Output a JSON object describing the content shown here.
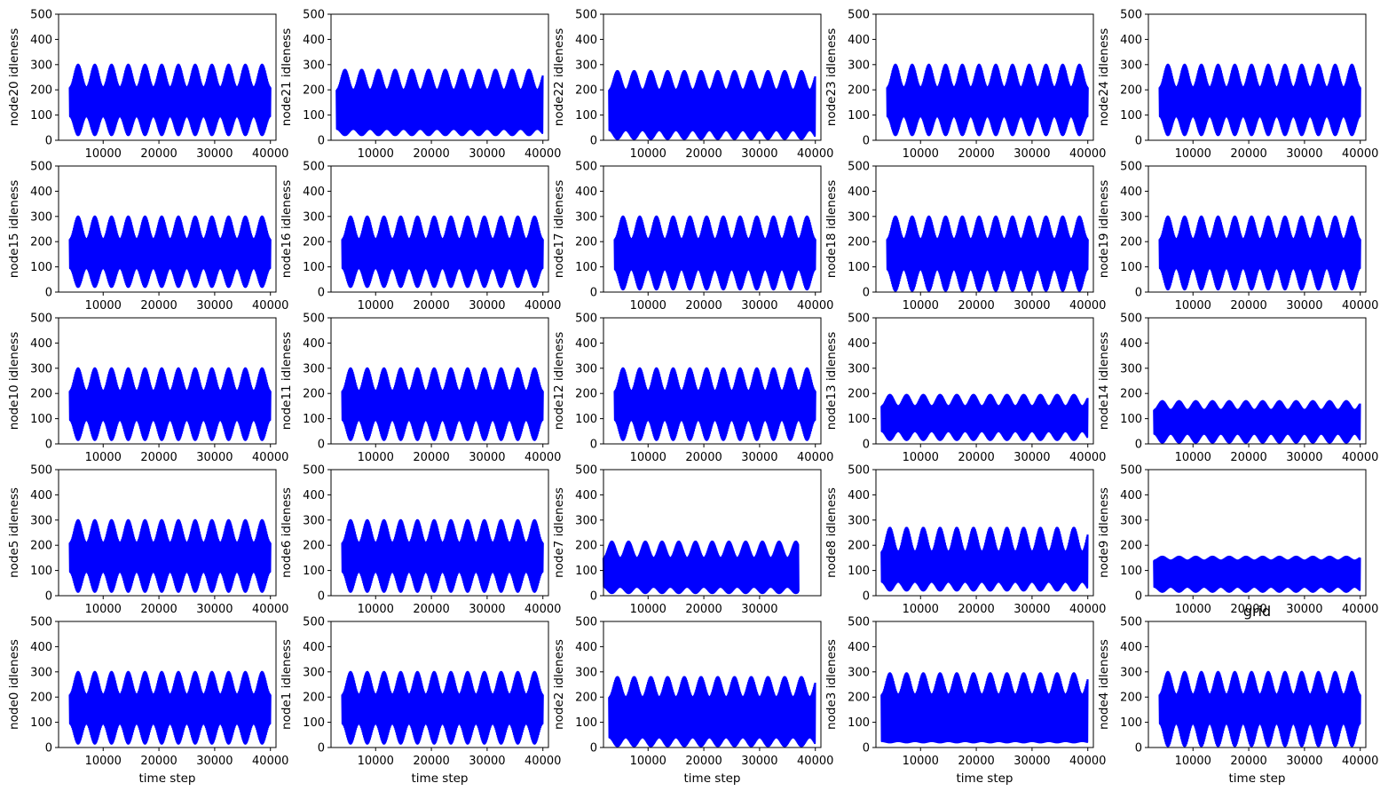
{
  "figure_suptitle": "grid",
  "chart_data": [
    {
      "type": "area",
      "ylabel": "node20 idleness",
      "xlabel": "",
      "ylim": [
        0,
        500
      ],
      "yticks": [
        0,
        100,
        200,
        300,
        400,
        500
      ],
      "xticks": [
        10000,
        20000,
        30000,
        40000
      ],
      "x_range": [
        4000,
        40000
      ],
      "period": 3000,
      "envelope": {
        "mean": 150,
        "max_high": 300,
        "min_high": 210,
        "min_low": 20,
        "max_low": 95
      },
      "series_color": "#0000ff"
    },
    {
      "type": "area",
      "ylabel": "node21 idleness",
      "xlabel": "",
      "ylim": [
        0,
        500
      ],
      "yticks": [
        0,
        100,
        200,
        300,
        400,
        500
      ],
      "xticks": [
        10000,
        20000,
        30000,
        40000
      ],
      "x_range": [
        3000,
        40000
      ],
      "period": 3000,
      "envelope": {
        "mean": 100,
        "max_high": 280,
        "min_high": 200,
        "min_low": 20,
        "max_low": 45
      },
      "series_color": "#0000ff"
    },
    {
      "type": "area",
      "ylabel": "node22 idleness",
      "xlabel": "",
      "ylim": [
        0,
        500
      ],
      "yticks": [
        0,
        100,
        200,
        300,
        400,
        500
      ],
      "xticks": [
        10000,
        20000,
        30000,
        40000
      ],
      "x_range": [
        3000,
        40000
      ],
      "period": 3000,
      "envelope": {
        "mean": 110,
        "max_high": 275,
        "min_high": 200,
        "min_low": 5,
        "max_low": 40
      },
      "series_color": "#0000ff"
    },
    {
      "type": "area",
      "ylabel": "node23 idleness",
      "xlabel": "",
      "ylim": [
        0,
        500
      ],
      "yticks": [
        0,
        100,
        200,
        300,
        400,
        500
      ],
      "xticks": [
        10000,
        20000,
        30000,
        40000
      ],
      "x_range": [
        4000,
        40000
      ],
      "period": 3000,
      "envelope": {
        "mean": 150,
        "max_high": 300,
        "min_high": 210,
        "min_low": 20,
        "max_low": 95
      },
      "series_color": "#0000ff"
    },
    {
      "type": "area",
      "ylabel": "node24 idleness",
      "xlabel": "",
      "ylim": [
        0,
        500
      ],
      "yticks": [
        0,
        100,
        200,
        300,
        400,
        500
      ],
      "xticks": [
        10000,
        20000,
        30000,
        40000
      ],
      "x_range": [
        4000,
        40000
      ],
      "period": 3000,
      "envelope": {
        "mean": 150,
        "max_high": 300,
        "min_high": 210,
        "min_low": 20,
        "max_low": 95
      },
      "series_color": "#0000ff"
    },
    {
      "type": "area",
      "ylabel": "node15 idleness",
      "xlabel": "",
      "ylim": [
        0,
        500
      ],
      "yticks": [
        0,
        100,
        200,
        300,
        400,
        500
      ],
      "xticks": [
        10000,
        20000,
        30000,
        40000
      ],
      "x_range": [
        4000,
        40000
      ],
      "period": 3000,
      "envelope": {
        "mean": 150,
        "max_high": 300,
        "min_high": 210,
        "min_low": 20,
        "max_low": 95
      },
      "series_color": "#0000ff"
    },
    {
      "type": "area",
      "ylabel": "node16 idleness",
      "xlabel": "",
      "ylim": [
        0,
        500
      ],
      "yticks": [
        0,
        100,
        200,
        300,
        400,
        500
      ],
      "xticks": [
        10000,
        20000,
        30000,
        40000
      ],
      "x_range": [
        4000,
        40000
      ],
      "period": 3000,
      "envelope": {
        "mean": 150,
        "max_high": 300,
        "min_high": 210,
        "min_low": 20,
        "max_low": 95
      },
      "series_color": "#0000ff"
    },
    {
      "type": "area",
      "ylabel": "node17 idleness",
      "xlabel": "",
      "ylim": [
        0,
        500
      ],
      "yticks": [
        0,
        100,
        200,
        300,
        400,
        500
      ],
      "xticks": [
        10000,
        20000,
        30000,
        40000
      ],
      "x_range": [
        4000,
        40000
      ],
      "period": 3000,
      "envelope": {
        "mean": 150,
        "max_high": 300,
        "min_high": 210,
        "min_low": 10,
        "max_low": 90
      },
      "series_color": "#0000ff"
    },
    {
      "type": "area",
      "ylabel": "node18 idleness",
      "xlabel": "",
      "ylim": [
        0,
        500
      ],
      "yticks": [
        0,
        100,
        200,
        300,
        400,
        500
      ],
      "xticks": [
        10000,
        20000,
        30000,
        40000
      ],
      "x_range": [
        4000,
        40000
      ],
      "period": 3000,
      "envelope": {
        "mean": 150,
        "max_high": 300,
        "min_high": 210,
        "min_low": 5,
        "max_low": 90
      },
      "series_color": "#0000ff"
    },
    {
      "type": "area",
      "ylabel": "node19 idleness",
      "xlabel": "",
      "ylim": [
        0,
        500
      ],
      "yticks": [
        0,
        100,
        200,
        300,
        400,
        500
      ],
      "xticks": [
        10000,
        20000,
        30000,
        40000
      ],
      "x_range": [
        4000,
        40000
      ],
      "period": 3000,
      "envelope": {
        "mean": 150,
        "max_high": 300,
        "min_high": 210,
        "min_low": 10,
        "max_low": 95
      },
      "series_color": "#0000ff"
    },
    {
      "type": "area",
      "ylabel": "node10 idleness",
      "xlabel": "",
      "ylim": [
        0,
        500
      ],
      "yticks": [
        0,
        100,
        200,
        300,
        400,
        500
      ],
      "xticks": [
        10000,
        20000,
        30000,
        40000
      ],
      "x_range": [
        4000,
        40000
      ],
      "period": 3000,
      "envelope": {
        "mean": 150,
        "max_high": 300,
        "min_high": 210,
        "min_low": 15,
        "max_low": 95
      },
      "series_color": "#0000ff"
    },
    {
      "type": "area",
      "ylabel": "node11 idleness",
      "xlabel": "",
      "ylim": [
        0,
        500
      ],
      "yticks": [
        0,
        100,
        200,
        300,
        400,
        500
      ],
      "xticks": [
        10000,
        20000,
        30000,
        40000
      ],
      "x_range": [
        4000,
        40000
      ],
      "period": 3000,
      "envelope": {
        "mean": 150,
        "max_high": 300,
        "min_high": 210,
        "min_low": 15,
        "max_low": 95
      },
      "series_color": "#0000ff"
    },
    {
      "type": "area",
      "ylabel": "node12 idleness",
      "xlabel": "",
      "ylim": [
        0,
        500
      ],
      "yticks": [
        0,
        100,
        200,
        300,
        400,
        500
      ],
      "xticks": [
        10000,
        20000,
        30000,
        40000
      ],
      "x_range": [
        4000,
        40000
      ],
      "period": 3000,
      "envelope": {
        "mean": 150,
        "max_high": 300,
        "min_high": 210,
        "min_low": 15,
        "max_low": 95
      },
      "series_color": "#0000ff"
    },
    {
      "type": "area",
      "ylabel": "node13 idleness",
      "xlabel": "",
      "ylim": [
        0,
        500
      ],
      "yticks": [
        0,
        100,
        200,
        300,
        400,
        500
      ],
      "xticks": [
        10000,
        20000,
        30000,
        40000
      ],
      "x_range": [
        3000,
        40000
      ],
      "period": 3000,
      "envelope": {
        "mean": 110,
        "max_high": 195,
        "min_high": 150,
        "min_low": 15,
        "max_low": 50
      },
      "series_color": "#0000ff"
    },
    {
      "type": "area",
      "ylabel": "node14 idleness",
      "xlabel": "",
      "ylim": [
        0,
        500
      ],
      "yticks": [
        0,
        100,
        200,
        300,
        400,
        500
      ],
      "xticks": [
        10000,
        20000,
        30000,
        40000
      ],
      "x_range": [
        3000,
        40000
      ],
      "period": 3000,
      "envelope": {
        "mean": 95,
        "max_high": 170,
        "min_high": 135,
        "min_low": 5,
        "max_low": 40
      },
      "series_color": "#0000ff"
    },
    {
      "type": "area",
      "ylabel": "node5 idleness",
      "xlabel": "",
      "ylim": [
        0,
        500
      ],
      "yticks": [
        0,
        100,
        200,
        300,
        400,
        500
      ],
      "xticks": [
        10000,
        20000,
        30000,
        40000
      ],
      "x_range": [
        4000,
        40000
      ],
      "period": 3000,
      "envelope": {
        "mean": 150,
        "max_high": 300,
        "min_high": 210,
        "min_low": 15,
        "max_low": 95
      },
      "series_color": "#0000ff"
    },
    {
      "type": "area",
      "ylabel": "node6 idleness",
      "xlabel": "",
      "ylim": [
        0,
        500
      ],
      "yticks": [
        0,
        100,
        200,
        300,
        400,
        500
      ],
      "xticks": [
        10000,
        20000,
        30000,
        40000
      ],
      "x_range": [
        4000,
        40000
      ],
      "period": 3000,
      "envelope": {
        "mean": 150,
        "max_high": 300,
        "min_high": 210,
        "min_low": 15,
        "max_low": 95
      },
      "series_color": "#0000ff"
    },
    {
      "type": "area",
      "ylabel": "node7 idleness",
      "xlabel": "",
      "ylim": [
        0,
        500
      ],
      "yticks": [
        0,
        100,
        200,
        300,
        400,
        500
      ],
      "xticks": [
        10000,
        20000,
        30000
      ],
      "x_range": [
        2000,
        37000
      ],
      "period": 3000,
      "envelope": {
        "mean": 70,
        "max_high": 215,
        "min_high": 150,
        "min_low": 10,
        "max_low": 35
      },
      "series_color": "#0000ff"
    },
    {
      "type": "area",
      "ylabel": "node8 idleness",
      "xlabel": "",
      "ylim": [
        0,
        500
      ],
      "yticks": [
        0,
        100,
        200,
        300,
        400,
        500
      ],
      "xticks": [
        10000,
        20000,
        30000,
        40000
      ],
      "x_range": [
        3000,
        40000
      ],
      "period": 3000,
      "envelope": {
        "mean": 100,
        "max_high": 270,
        "min_high": 175,
        "min_low": 20,
        "max_low": 55
      },
      "series_color": "#0000ff"
    },
    {
      "type": "area",
      "ylabel": "node9 idleness",
      "xlabel": "",
      "ylim": [
        0,
        500
      ],
      "yticks": [
        0,
        100,
        200,
        300,
        400,
        500
      ],
      "xticks": [
        10000,
        20000,
        30000,
        40000
      ],
      "x_range": [
        3000,
        40000
      ],
      "period": 3000,
      "envelope": {
        "mean": 100,
        "max_high": 155,
        "min_high": 140,
        "min_low": 15,
        "max_low": 35
      },
      "series_color": "#0000ff"
    },
    {
      "type": "area",
      "ylabel": "node0 idleness",
      "xlabel": "time step",
      "ylim": [
        0,
        500
      ],
      "yticks": [
        0,
        100,
        200,
        300,
        400,
        500
      ],
      "xticks": [
        10000,
        20000,
        30000,
        40000
      ],
      "x_range": [
        4000,
        40000
      ],
      "period": 3000,
      "envelope": {
        "mean": 150,
        "max_high": 300,
        "min_high": 210,
        "min_low": 15,
        "max_low": 95
      },
      "series_color": "#0000ff"
    },
    {
      "type": "area",
      "ylabel": "node1 idleness",
      "xlabel": "time step",
      "ylim": [
        0,
        500
      ],
      "yticks": [
        0,
        100,
        200,
        300,
        400,
        500
      ],
      "xticks": [
        10000,
        20000,
        30000,
        40000
      ],
      "x_range": [
        4000,
        40000
      ],
      "period": 3000,
      "envelope": {
        "mean": 150,
        "max_high": 300,
        "min_high": 210,
        "min_low": 15,
        "max_low": 95
      },
      "series_color": "#0000ff"
    },
    {
      "type": "area",
      "ylabel": "node2 idleness",
      "xlabel": "time step",
      "ylim": [
        0,
        500
      ],
      "yticks": [
        0,
        100,
        200,
        300,
        400,
        500
      ],
      "xticks": [
        10000,
        20000,
        30000,
        40000
      ],
      "x_range": [
        3000,
        40000
      ],
      "period": 3000,
      "envelope": {
        "mean": 110,
        "max_high": 280,
        "min_high": 200,
        "min_low": 5,
        "max_low": 40
      },
      "series_color": "#0000ff"
    },
    {
      "type": "area",
      "ylabel": "node3 idleness",
      "xlabel": "time step",
      "ylim": [
        0,
        500
      ],
      "yticks": [
        0,
        100,
        200,
        300,
        400,
        500
      ],
      "xticks": [
        10000,
        20000,
        30000,
        40000
      ],
      "x_range": [
        3000,
        40000
      ],
      "period": 3000,
      "envelope": {
        "mean": 110,
        "max_high": 295,
        "min_high": 210,
        "min_low": 20,
        "max_low": 25
      },
      "series_color": "#0000ff"
    },
    {
      "type": "area",
      "ylabel": "node4 idleness",
      "xlabel": "time step",
      "ylim": [
        0,
        500
      ],
      "yticks": [
        0,
        100,
        200,
        300,
        400,
        500
      ],
      "xticks": [
        10000,
        20000,
        30000,
        40000
      ],
      "x_range": [
        4000,
        40000
      ],
      "period": 3000,
      "envelope": {
        "mean": 150,
        "max_high": 300,
        "min_high": 210,
        "min_low": 5,
        "max_low": 95
      },
      "series_color": "#0000ff"
    }
  ]
}
